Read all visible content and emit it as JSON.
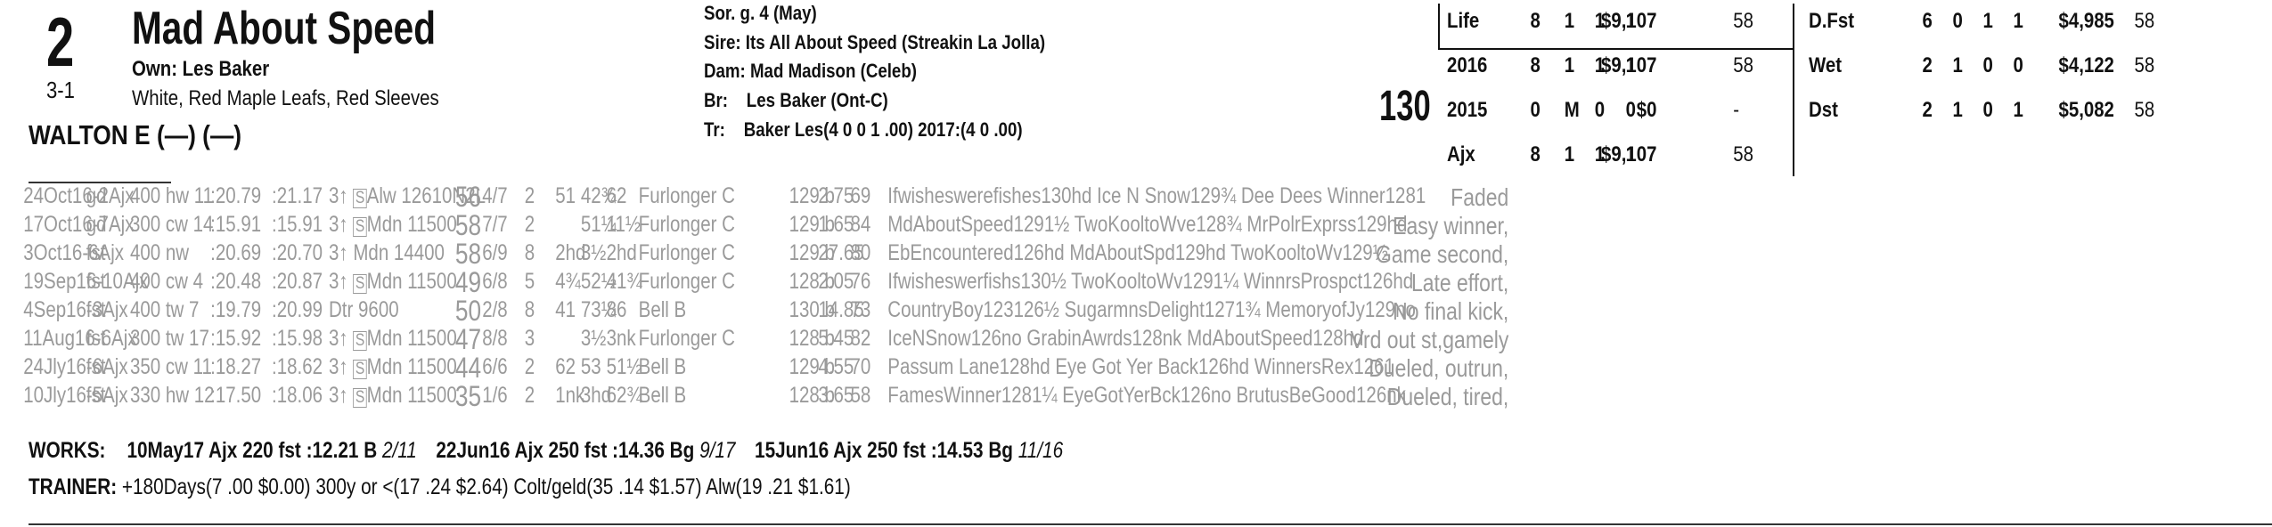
{
  "header": {
    "post_position": "2",
    "horse_name": "Mad About Speed",
    "owner": "Own: Les Baker",
    "odds": "3-1",
    "silks": "White, Red Maple Leafs, Red Sleeves",
    "jockey": "WALTON E (—) (—)",
    "sex_age": "Sor. g. 4 (May)",
    "sire_label": "Sire:",
    "sire": "Its All About Speed (Streakin La Jolla)",
    "dam_label": "Dam:",
    "dam": "Mad Madison (Celeb)",
    "breeder_label": "Br:",
    "breeder": "Les Baker (Ont-C)",
    "trainer_label": "Tr:",
    "trainer": "Baker Les(4 0 0 1 .00)  2017:(4 0 .00)",
    "weight": "130"
  },
  "stats_left": [
    {
      "label": "Life",
      "st": "8",
      "w": "1",
      "p": "1",
      "s": "1",
      "earn": "$9,107",
      "sp": "58"
    },
    {
      "label": "2016",
      "st": "8",
      "w": "1",
      "p": "1",
      "s": "1",
      "earn": "$9,107",
      "sp": "58"
    },
    {
      "label": "2015",
      "st": "0",
      "w": "M",
      "p": "0",
      "s": "0",
      "earn": "$0",
      "sp": "-"
    },
    {
      "label": "Ajx",
      "st": "8",
      "w": "1",
      "p": "1",
      "s": "1",
      "earn": "$9,107",
      "sp": "58"
    }
  ],
  "stats_right": [
    {
      "label": "D.Fst",
      "st": "6",
      "w": "0",
      "p": "1",
      "s": "1",
      "earn": "$4,985",
      "sp": "58"
    },
    {
      "label": "Wet",
      "st": "2",
      "w": "1",
      "p": "0",
      "s": "0",
      "earn": "$4,122",
      "sp": "58"
    },
    {
      "label": "Dst",
      "st": "2",
      "w": "1",
      "p": "0",
      "s": "1",
      "earn": "$5,082",
      "sp": "58"
    }
  ],
  "past_performances": [
    {
      "date": "24Oct16-2Ajx",
      "cond": "gd",
      "dist": "400 hw 11",
      "t1": ":20.79",
      "t2": ":21.17",
      "race": "3↑ S Alw 12610N2L",
      "age_s": true,
      "spd": "56",
      "pp": "4/7",
      "st": "2",
      "c1": "51",
      "c2": "42¾",
      "fin": "62",
      "jockey": "Furlonger C",
      "wt": "129 b",
      "odds": "2.75",
      "sp": "69",
      "comp": "Ifwisheswerefishes130hd Ice N Snow129¾ Dee Dees Winner1281",
      "comment": "Faded"
    },
    {
      "date": "17Oct16-7Ajx",
      "cond": "gd",
      "dist": "300 cw 14",
      "t1": ":15.91",
      "t2": ":15.91",
      "race": "3↑ S Mdn 11500",
      "age_s": true,
      "spd": "58",
      "pp": "7/7",
      "st": "2",
      "c1": "",
      "c2": "51¼",
      "fin": "11½",
      "jockey": "Furlonger C",
      "wt": "129 b",
      "odds": "1.65",
      "sp": "84",
      "comp": "MdAboutSpeed1291½ TwoKooltoWve128¾ MrPolrExprss129hd",
      "comment": "Easy winner,"
    },
    {
      "date": "3Oct16-6Ajx",
      "cond": "fst",
      "dist": "400 nw",
      "t1": ":20.69",
      "t2": ":20.70",
      "race": "3↑ Mdn 14400",
      "age_s": false,
      "spd": "58",
      "pp": "6/9",
      "st": "8",
      "c1": "2hd",
      "c2": "3½",
      "fin": "2hd",
      "jockey": "Furlonger C",
      "wt": "129 b",
      "odds": "27.65",
      "sp": "80",
      "comp": "EbEncountered126hd MdAboutSpd129hd TwoKooltoWv129½",
      "comment": "Game second,"
    },
    {
      "date": "19Sep16-10Ajx",
      "cond": "fst",
      "dist": "400 cw 4",
      "t1": ":20.48",
      "t2": ":20.87",
      "race": "3↑ S Mdn 11500",
      "age_s": true,
      "spd": "49",
      "pp": "6/8",
      "st": "5",
      "c1": "4¾",
      "c2": "52½",
      "fin": "41¾",
      "jockey": "Furlonger C",
      "wt": "128 b",
      "odds": "2.05",
      "sp": "76",
      "comp": "Ifwisheswerfishs130½ TwoKooltoWv1291¼ WinnrsProspct126hd",
      "comment": "Late effort,"
    },
    {
      "date": "4Sep16-3Ajx",
      "cond": "fst",
      "dist": "400 tw 7",
      "t1": ":19.79",
      "t2": ":20.99",
      "race": "Dtr 9600",
      "age_s": false,
      "spd": "50",
      "pp": "2/8",
      "st": "8",
      "c1": "41",
      "c2": "73¼",
      "fin": "86",
      "jockey": "Bell B",
      "wt": "130 b",
      "odds": "14.85",
      "sp": "73",
      "comp": "CountryBoy123126½ SugarmnsDelight1271¾ MemoryofJy129no",
      "comment": "No final kick,"
    },
    {
      "date": "11Aug16-6Ajx",
      "cond": "fst",
      "dist": "300 tw 17",
      "t1": ":15.92",
      "t2": ":15.98",
      "race": "3↑ S Mdn 11500",
      "age_s": true,
      "spd": "47",
      "pp": "8/8",
      "st": "3",
      "c1": "",
      "c2": "3½",
      "fin": "3nk",
      "jockey": "Furlonger C",
      "wt": "128 b",
      "odds": "5.45",
      "sp": "82",
      "comp": "IceNSnow126no GrabinAwrds128nk MdAboutSpeed128hd",
      "comment": "Vrd out st,gamely"
    },
    {
      "date": "24Jly16-6Ajx",
      "cond": "fst",
      "dist": "350 cw 11",
      "t1": ":18.27",
      "t2": ":18.62",
      "race": "3↑ S Mdn 11500",
      "age_s": true,
      "spd": "44",
      "pp": "6/6",
      "st": "2",
      "c1": "62",
      "c2": "53",
      "fin": "51½",
      "jockey": "Bell B",
      "wt": "129 b",
      "odds": "4.55",
      "sp": "70",
      "comp": "Passum Lane128hd Eye Got Yer Back126hd WinnersRex1261",
      "comment": "Dueled, outrun,"
    },
    {
      "date": "10Jly16-5Ajx",
      "cond": "fst",
      "dist": "330 hw 12",
      "t1": ":17.50",
      "t2": ":18.06",
      "race": "3↑ S Mdn 11500",
      "age_s": true,
      "spd": "35",
      "pp": "1/6",
      "st": "2",
      "c1": "1nk",
      "c2": "3hd",
      "fin": "62¾",
      "jockey": "Bell B",
      "wt": "128 b",
      "odds": "3.65",
      "sp": "58",
      "comp": "FamesWinner1281¼ EyeGotYerBck126no BrutusBeGood126nk",
      "comment": "Dueled, tired,"
    }
  ],
  "works": {
    "label": "WORKS:",
    "items": [
      {
        "date": "10May17",
        "track": "Ajx",
        "dist": "220 fst",
        "time": ":12.21",
        "grade": "B",
        "rank": "2/11"
      },
      {
        "date": "22Jun16",
        "track": "Ajx",
        "dist": "250 fst",
        "time": ":14.36",
        "grade": "Bg",
        "rank": "9/17"
      },
      {
        "date": "15Jun16",
        "track": "Ajx",
        "dist": "250 fst",
        "time": ":14.53",
        "grade": "Bg",
        "rank": "11/16"
      }
    ]
  },
  "trainer_stats": {
    "label": "TRAINER:",
    "text": "+180Days(7 .00 $0.00) 300y or <(17 .24 $2.64) Colt/geld(35 .14 $1.57) Alw(19 .21 $1.61)"
  }
}
